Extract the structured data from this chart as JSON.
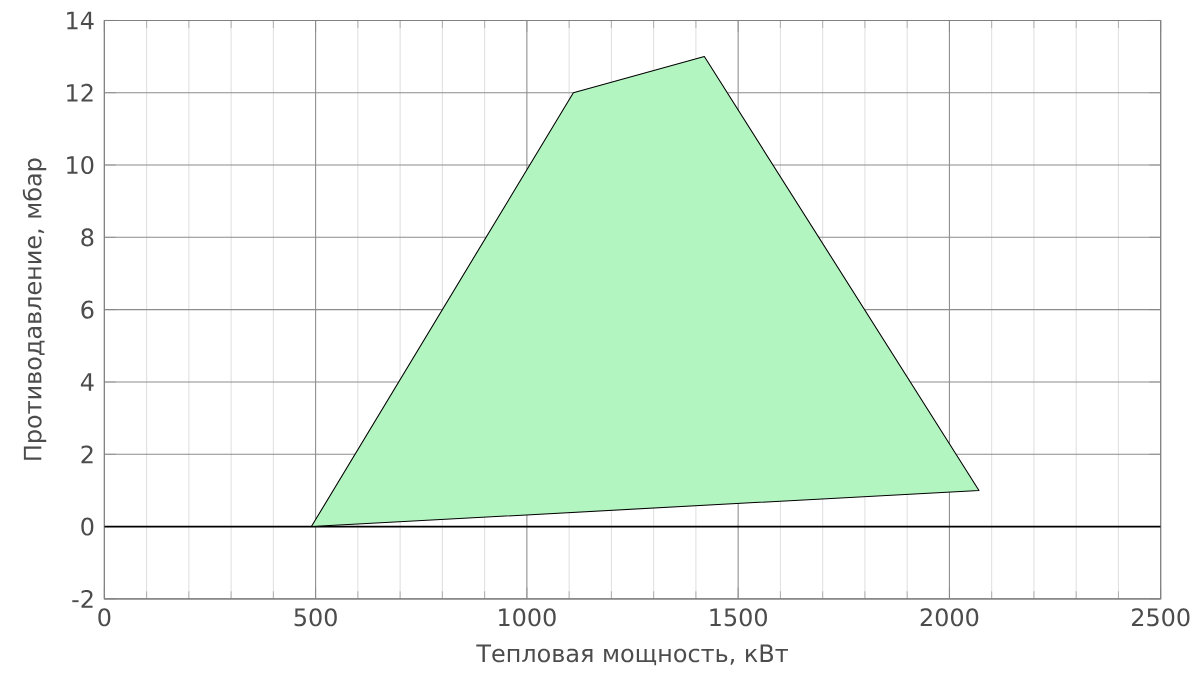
{
  "chart_data": {
    "type": "area",
    "xlabel": "Тепловая мощность, кВт",
    "ylabel": "Противодавление, мбар",
    "series": [
      {
        "color": "#b3f5c0",
        "x": [
          490,
          1110,
          1420,
          2070,
          490
        ],
        "values": [
          0,
          12,
          13,
          1,
          0
        ]
      }
    ],
    "xlim": [
      0,
      2500
    ],
    "ylim": [
      -2,
      14
    ],
    "xticks": [
      0,
      500,
      1000,
      1500,
      2000,
      2500
    ],
    "yticks": [
      -2,
      0,
      2,
      4,
      6,
      8,
      10,
      12,
      14
    ],
    "grid": true,
    "ref_lines": [
      {
        "axis": "y",
        "value": 0,
        "color": "#000000"
      }
    ]
  }
}
